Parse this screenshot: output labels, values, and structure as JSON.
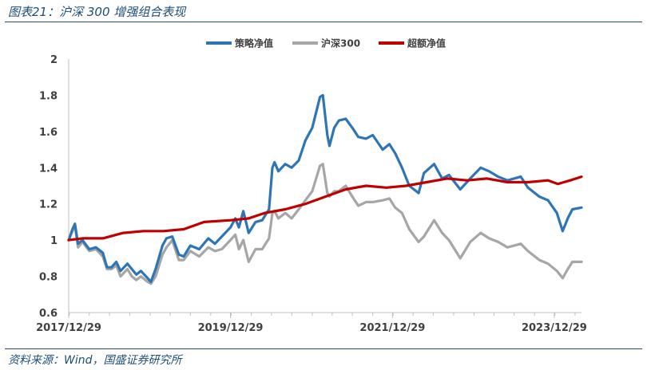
{
  "header": {
    "title": "图表21：沪深 300 增强组合表现"
  },
  "footer": {
    "source": "资料来源：Wind，国盛证券研究所"
  },
  "colors": {
    "strategy": "#2e75b6",
    "hs300": "#a6a6a6",
    "excess": "#c00000",
    "accent": "#1f4e79"
  },
  "chart_data": {
    "type": "line",
    "title": "",
    "xlabel": "",
    "ylabel": "",
    "ylim": [
      0.6,
      2.0
    ],
    "yticks": [
      "0.6",
      "0.8",
      "1",
      "1.2",
      "1.4",
      "1.6",
      "1.8",
      "2"
    ],
    "xticks": [
      "2017/12/29",
      "2019/12/29",
      "2021/12/29",
      "2023/12/29"
    ],
    "xlim": [
      "2017/12/29",
      "2024/04/30"
    ],
    "grid": false,
    "legend": "top",
    "series": [
      {
        "name": "策略净值",
        "color": "#2e75b6",
        "points": [
          [
            "2017/12/29",
            1.0
          ],
          [
            "2018/01/15",
            1.06
          ],
          [
            "2018/01/26",
            1.09
          ],
          [
            "2018/02/09",
            0.98
          ],
          [
            "2018/03/01",
            1.0
          ],
          [
            "2018/04/01",
            0.95
          ],
          [
            "2018/05/01",
            0.96
          ],
          [
            "2018/06/01",
            0.93
          ],
          [
            "2018/06/20",
            0.85
          ],
          [
            "2018/07/10",
            0.85
          ],
          [
            "2018/08/01",
            0.88
          ],
          [
            "2018/08/20",
            0.83
          ],
          [
            "2018/09/20",
            0.87
          ],
          [
            "2018/10/10",
            0.84
          ],
          [
            "2018/10/30",
            0.81
          ],
          [
            "2018/11/20",
            0.83
          ],
          [
            "2018/12/20",
            0.79
          ],
          [
            "2019/01/04",
            0.77
          ],
          [
            "2019/01/25",
            0.84
          ],
          [
            "2019/02/25",
            0.97
          ],
          [
            "2019/03/15",
            1.01
          ],
          [
            "2019/04/10",
            1.02
          ],
          [
            "2019/05/10",
            0.92
          ],
          [
            "2019/06/01",
            0.91
          ],
          [
            "2019/07/01",
            0.97
          ],
          [
            "2019/08/10",
            0.95
          ],
          [
            "2019/09/20",
            1.01
          ],
          [
            "2019/10/20",
            0.98
          ],
          [
            "2019/11/20",
            1.02
          ],
          [
            "2019/12/29",
            1.07
          ],
          [
            "2020/01/20",
            1.12
          ],
          [
            "2020/02/05",
            1.07
          ],
          [
            "2020/02/25",
            1.16
          ],
          [
            "2020/03/20",
            1.04
          ],
          [
            "2020/04/20",
            1.1
          ],
          [
            "2020/05/20",
            1.11
          ],
          [
            "2020/06/20",
            1.17
          ],
          [
            "2020/07/05",
            1.4
          ],
          [
            "2020/07/15",
            1.43
          ],
          [
            "2020/08/01",
            1.38
          ],
          [
            "2020/09/01",
            1.42
          ],
          [
            "2020/09/30",
            1.4
          ],
          [
            "2020/11/01",
            1.44
          ],
          [
            "2020/12/01",
            1.55
          ],
          [
            "2021/01/01",
            1.62
          ],
          [
            "2021/02/05",
            1.79
          ],
          [
            "2021/02/18",
            1.8
          ],
          [
            "2021/03/10",
            1.58
          ],
          [
            "2021/03/20",
            1.52
          ],
          [
            "2021/04/10",
            1.62
          ],
          [
            "2021/05/01",
            1.66
          ],
          [
            "2021/06/01",
            1.67
          ],
          [
            "2021/07/01",
            1.62
          ],
          [
            "2021/07/28",
            1.57
          ],
          [
            "2021/09/01",
            1.56
          ],
          [
            "2021/10/01",
            1.58
          ],
          [
            "2021/11/15",
            1.5
          ],
          [
            "2021/12/15",
            1.53
          ],
          [
            "2022/01/10",
            1.48
          ],
          [
            "2022/02/10",
            1.4
          ],
          [
            "2022/03/15",
            1.3
          ],
          [
            "2022/04/26",
            1.26
          ],
          [
            "2022/05/20",
            1.37
          ],
          [
            "2022/07/05",
            1.42
          ],
          [
            "2022/08/10",
            1.34
          ],
          [
            "2022/09/10",
            1.36
          ],
          [
            "2022/10/31",
            1.28
          ],
          [
            "2022/12/15",
            1.34
          ],
          [
            "2023/01/31",
            1.4
          ],
          [
            "2023/03/10",
            1.38
          ],
          [
            "2023/04/20",
            1.35
          ],
          [
            "2023/06/01",
            1.33
          ],
          [
            "2023/07/31",
            1.35
          ],
          [
            "2023/09/01",
            1.29
          ],
          [
            "2023/10/23",
            1.24
          ],
          [
            "2023/12/01",
            1.22
          ],
          [
            "2024/01/10",
            1.15
          ],
          [
            "2024/02/05",
            1.05
          ],
          [
            "2024/02/28",
            1.12
          ],
          [
            "2024/03/20",
            1.17
          ],
          [
            "2024/04/30",
            1.18
          ]
        ]
      },
      {
        "name": "沪深300",
        "color": "#a6a6a6",
        "points": [
          [
            "2017/12/29",
            1.0
          ],
          [
            "2018/01/15",
            1.05
          ],
          [
            "2018/01/26",
            1.08
          ],
          [
            "2018/02/09",
            0.96
          ],
          [
            "2018/03/01",
            0.99
          ],
          [
            "2018/04/01",
            0.94
          ],
          [
            "2018/05/01",
            0.95
          ],
          [
            "2018/06/01",
            0.91
          ],
          [
            "2018/06/20",
            0.84
          ],
          [
            "2018/07/10",
            0.84
          ],
          [
            "2018/08/01",
            0.86
          ],
          [
            "2018/08/20",
            0.8
          ],
          [
            "2018/09/20",
            0.84
          ],
          [
            "2018/10/10",
            0.8
          ],
          [
            "2018/10/30",
            0.78
          ],
          [
            "2018/11/20",
            0.8
          ],
          [
            "2018/12/20",
            0.77
          ],
          [
            "2019/01/04",
            0.76
          ],
          [
            "2019/01/25",
            0.8
          ],
          [
            "2019/02/25",
            0.92
          ],
          [
            "2019/03/15",
            0.96
          ],
          [
            "2019/04/10",
            1.0
          ],
          [
            "2019/05/10",
            0.89
          ],
          [
            "2019/06/01",
            0.89
          ],
          [
            "2019/07/01",
            0.94
          ],
          [
            "2019/08/10",
            0.91
          ],
          [
            "2019/09/20",
            0.96
          ],
          [
            "2019/10/20",
            0.94
          ],
          [
            "2019/11/20",
            0.95
          ],
          [
            "2019/12/29",
            1.0
          ],
          [
            "2020/01/20",
            1.03
          ],
          [
            "2020/02/05",
            0.95
          ],
          [
            "2020/02/25",
            1.0
          ],
          [
            "2020/03/20",
            0.88
          ],
          [
            "2020/04/20",
            0.95
          ],
          [
            "2020/05/20",
            0.95
          ],
          [
            "2020/06/20",
            1.01
          ],
          [
            "2020/07/05",
            1.15
          ],
          [
            "2020/07/15",
            1.16
          ],
          [
            "2020/08/01",
            1.12
          ],
          [
            "2020/09/01",
            1.15
          ],
          [
            "2020/09/30",
            1.12
          ],
          [
            "2020/11/01",
            1.17
          ],
          [
            "2020/12/01",
            1.22
          ],
          [
            "2021/01/01",
            1.27
          ],
          [
            "2021/02/05",
            1.41
          ],
          [
            "2021/02/18",
            1.42
          ],
          [
            "2021/03/10",
            1.26
          ],
          [
            "2021/03/20",
            1.24
          ],
          [
            "2021/04/10",
            1.27
          ],
          [
            "2021/05/01",
            1.27
          ],
          [
            "2021/06/01",
            1.3
          ],
          [
            "2021/07/01",
            1.24
          ],
          [
            "2021/07/28",
            1.19
          ],
          [
            "2021/09/01",
            1.21
          ],
          [
            "2021/10/01",
            1.21
          ],
          [
            "2021/11/15",
            1.22
          ],
          [
            "2021/12/15",
            1.23
          ],
          [
            "2022/01/10",
            1.18
          ],
          [
            "2022/02/10",
            1.15
          ],
          [
            "2022/03/15",
            1.06
          ],
          [
            "2022/04/26",
            0.99
          ],
          [
            "2022/05/20",
            1.02
          ],
          [
            "2022/07/05",
            1.11
          ],
          [
            "2022/08/10",
            1.04
          ],
          [
            "2022/09/10",
            1.0
          ],
          [
            "2022/10/31",
            0.9
          ],
          [
            "2022/12/15",
            0.99
          ],
          [
            "2023/01/31",
            1.04
          ],
          [
            "2023/03/10",
            1.01
          ],
          [
            "2023/04/20",
            0.99
          ],
          [
            "2023/06/01",
            0.96
          ],
          [
            "2023/07/31",
            0.98
          ],
          [
            "2023/09/01",
            0.94
          ],
          [
            "2023/10/23",
            0.89
          ],
          [
            "2023/12/01",
            0.87
          ],
          [
            "2024/01/10",
            0.83
          ],
          [
            "2024/02/05",
            0.79
          ],
          [
            "2024/02/28",
            0.84
          ],
          [
            "2024/03/20",
            0.88
          ],
          [
            "2024/04/30",
            0.88
          ]
        ]
      },
      {
        "name": "超额净值",
        "color": "#c00000",
        "points": [
          [
            "2017/12/29",
            1.0
          ],
          [
            "2018/03/01",
            1.01
          ],
          [
            "2018/06/01",
            1.01
          ],
          [
            "2018/09/01",
            1.04
          ],
          [
            "2018/12/01",
            1.05
          ],
          [
            "2019/03/01",
            1.05
          ],
          [
            "2019/06/01",
            1.06
          ],
          [
            "2019/09/01",
            1.1
          ],
          [
            "2019/12/29",
            1.11
          ],
          [
            "2020/03/20",
            1.12
          ],
          [
            "2020/06/01",
            1.15
          ],
          [
            "2020/09/01",
            1.17
          ],
          [
            "2020/12/01",
            1.2
          ],
          [
            "2021/03/01",
            1.24
          ],
          [
            "2021/06/01",
            1.28
          ],
          [
            "2021/09/01",
            1.3
          ],
          [
            "2021/12/01",
            1.29
          ],
          [
            "2022/03/01",
            1.3
          ],
          [
            "2022/06/01",
            1.32
          ],
          [
            "2022/09/01",
            1.34
          ],
          [
            "2022/12/01",
            1.33
          ],
          [
            "2023/03/01",
            1.34
          ],
          [
            "2023/06/01",
            1.32
          ],
          [
            "2023/09/01",
            1.32
          ],
          [
            "2023/12/01",
            1.33
          ],
          [
            "2024/01/15",
            1.31
          ],
          [
            "2024/02/10",
            1.32
          ],
          [
            "2024/03/10",
            1.33
          ],
          [
            "2024/04/30",
            1.35
          ]
        ]
      }
    ]
  }
}
